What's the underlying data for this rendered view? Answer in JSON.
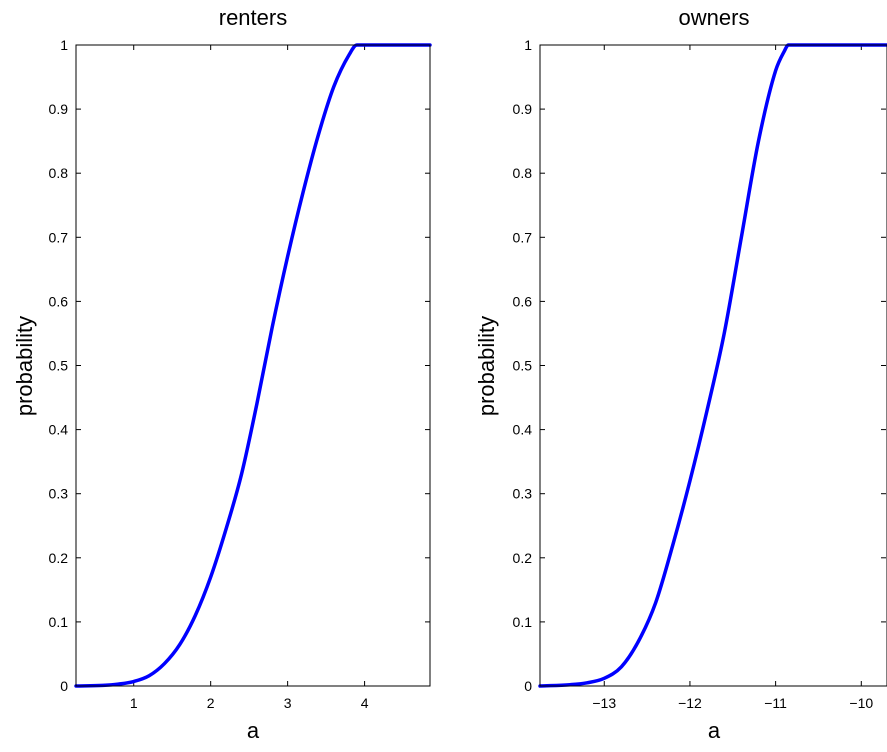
{
  "chart_data": [
    {
      "type": "line",
      "title": "renters",
      "xlabel": "a",
      "ylabel": "probability",
      "xlim": [
        0.25,
        4.85
      ],
      "ylim": [
        0,
        1
      ],
      "x_ticks": [
        "1",
        "2",
        "3",
        "4"
      ],
      "x_tick_values": [
        1,
        2,
        3,
        4
      ],
      "y_ticks": [
        "0",
        "0.1",
        "0.2",
        "0.3",
        "0.4",
        "0.5",
        "0.6",
        "0.7",
        "0.8",
        "0.9",
        "1"
      ],
      "grid": false,
      "color": "#0000ff",
      "series": [
        {
          "x": [
            0.25,
            0.6,
            0.8,
            1.0,
            1.2,
            1.4,
            1.6,
            1.8,
            2.0,
            2.2,
            2.4,
            2.6,
            2.8,
            3.0,
            3.2,
            3.4,
            3.6,
            3.8,
            3.9,
            4.0,
            4.85
          ],
          "y": [
            0.0,
            0.001,
            0.003,
            0.007,
            0.016,
            0.035,
            0.065,
            0.11,
            0.17,
            0.245,
            0.33,
            0.44,
            0.56,
            0.67,
            0.77,
            0.86,
            0.935,
            0.985,
            1.0,
            1.0,
            1.0
          ]
        }
      ]
    },
    {
      "type": "line",
      "title": "owners",
      "xlabel": "a",
      "ylabel": "probability",
      "xlim": [
        -13.75,
        -9.7
      ],
      "ylim": [
        0,
        1
      ],
      "x_ticks": [
        "−13",
        "−12",
        "−11",
        "−10"
      ],
      "x_tick_values": [
        -13,
        -12,
        -11,
        -10
      ],
      "y_ticks": [
        "0",
        "0.1",
        "0.2",
        "0.3",
        "0.4",
        "0.5",
        "0.6",
        "0.7",
        "0.8",
        "0.9",
        "1"
      ],
      "grid": false,
      "color": "#0000ff",
      "series": [
        {
          "x": [
            -13.75,
            -13.4,
            -13.2,
            -13.0,
            -12.8,
            -12.6,
            -12.4,
            -12.2,
            -12.0,
            -11.8,
            -11.6,
            -11.4,
            -11.2,
            -11.0,
            -10.9,
            -10.85,
            -9.7
          ],
          "y": [
            0.0,
            0.002,
            0.005,
            0.012,
            0.03,
            0.07,
            0.13,
            0.22,
            0.32,
            0.43,
            0.55,
            0.7,
            0.85,
            0.96,
            0.99,
            1.0,
            1.0
          ]
        }
      ]
    }
  ]
}
